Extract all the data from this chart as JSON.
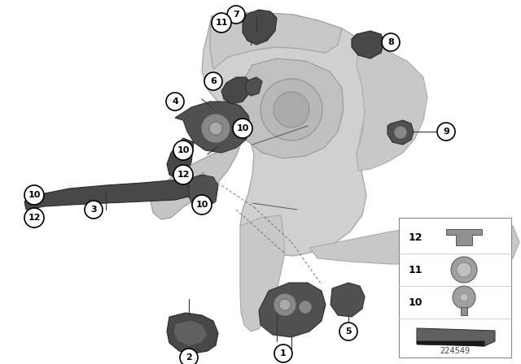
{
  "bg_color": "#ffffff",
  "fig_width": 6.4,
  "fig_height": 4.48,
  "dpi": 100,
  "part_number": "224549",
  "body_color": "#cccccc",
  "body_edge": "#999999",
  "dark_part": "#555555",
  "dark_part_edge": "#333333",
  "callout_bg": "#ffffff",
  "callout_edge": "#000000",
  "line_color": "#333333",
  "dash_color": "#666666"
}
